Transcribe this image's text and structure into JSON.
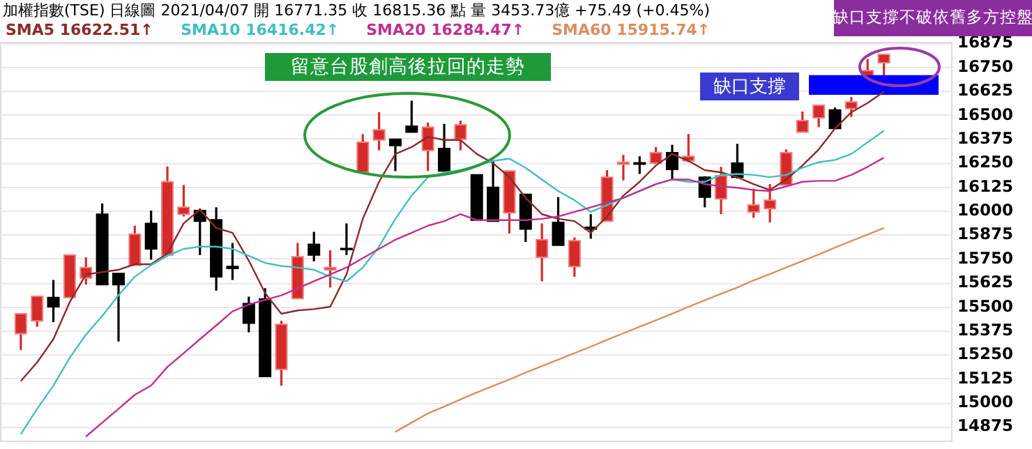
{
  "chart_data": {
    "type": "candlestick",
    "title": "加權指數(TSE)   日線圖   2021/04/07   開 16771.35   收 16815.36 點   量 3453.73億 +75.49 (+0.45%)",
    "categories": [
      null,
      null,
      null,
      null,
      null,
      null,
      null,
      null,
      null,
      null,
      null,
      null,
      null,
      null,
      null,
      null,
      null,
      null,
      null,
      null,
      null,
      null,
      null,
      null,
      null,
      null,
      null,
      null,
      null,
      null,
      null,
      null,
      null,
      null,
      null,
      null,
      null,
      null,
      null,
      null,
      null,
      null,
      null,
      null,
      null,
      null,
      null,
      null,
      null,
      null,
      null,
      null,
      null,
      null
    ],
    "ohlc": [
      [
        15358,
        15462,
        15273,
        15462
      ],
      [
        15425,
        15553,
        15394,
        15553
      ],
      [
        15546,
        15638,
        15418,
        15498
      ],
      [
        15546,
        15768,
        15546,
        15768
      ],
      [
        15648,
        15756,
        15614,
        15703
      ],
      [
        15981,
        16037,
        15614,
        15614
      ],
      [
        15672,
        15672,
        15317,
        15614
      ],
      [
        15715,
        15921,
        15715,
        15877
      ],
      [
        15933,
        16000,
        15744,
        15800
      ],
      [
        15768,
        16230,
        15768,
        16150
      ],
      [
        15981,
        16133,
        15969,
        16017
      ],
      [
        16000,
        16010,
        15768,
        15945
      ],
      [
        15952,
        16017,
        15582,
        15655
      ],
      [
        15708,
        15831,
        15638,
        15698
      ],
      [
        15515,
        15551,
        15365,
        15413
      ],
      [
        15539,
        15595,
        15135,
        15135
      ],
      [
        15172,
        15425,
        15087,
        15406
      ],
      [
        15541,
        15831,
        15541,
        15759
      ],
      [
        15824,
        15889,
        15735,
        15768
      ],
      [
        15691,
        15793,
        15599,
        15703
      ],
      [
        15802,
        15933,
        15768,
        15797
      ],
      [
        16199,
        16399,
        16194,
        16356
      ],
      [
        16368,
        16513,
        16314,
        16421
      ],
      [
        16372,
        16372,
        16206,
        16339
      ],
      [
        16440,
        16573,
        16409,
        16409
      ],
      [
        16314,
        16459,
        16206,
        16435
      ],
      [
        16324,
        16452,
        16206,
        16206
      ],
      [
        16372,
        16469,
        16314,
        16447
      ],
      [
        16186,
        16186,
        15950,
        15950
      ],
      [
        16121,
        16259,
        15945,
        15945
      ],
      [
        15988,
        16206,
        15880,
        16206
      ],
      [
        16085,
        16085,
        15836,
        15904
      ],
      [
        15756,
        15933,
        15631,
        15848
      ],
      [
        15938,
        16070,
        15819,
        15819
      ],
      [
        15708,
        15860,
        15655,
        15843
      ],
      [
        15913,
        15981,
        15853,
        15904
      ],
      [
        15945,
        16211,
        15945,
        16174
      ],
      [
        16242,
        16290,
        16157,
        16252
      ],
      [
        16249,
        16283,
        16191,
        16242
      ],
      [
        16247,
        16331,
        16242,
        16302
      ],
      [
        16302,
        16343,
        16157,
        16215
      ],
      [
        16259,
        16399,
        16252,
        16283
      ],
      [
        16174,
        16179,
        16017,
        16070
      ],
      [
        16061,
        16228,
        15981,
        16182
      ],
      [
        16247,
        16348,
        16167,
        16174
      ],
      [
        15993,
        16114,
        15962,
        16029
      ],
      [
        16010,
        16138,
        15938,
        16054
      ],
      [
        16133,
        16319,
        16133,
        16302
      ],
      [
        16409,
        16517,
        16409,
        16469
      ],
      [
        16484,
        16549,
        16435,
        16549
      ],
      [
        16525,
        16537,
        16423,
        16428
      ],
      [
        16532,
        16592,
        16488,
        16566
      ],
      [
        16701,
        16790,
        16701,
        16730
      ],
      [
        16771,
        16815,
        16706,
        16815
      ]
    ],
    "series": [
      {
        "name": "SMA5 16622.51↑",
        "type": "line",
        "color": "#8b2a2a",
        "values": [
          15111,
          15208,
          15329,
          15522,
          15667,
          15679,
          15691,
          15720,
          15720,
          15776,
          15933,
          16005,
          15909,
          15884,
          15739,
          15570,
          15462,
          15479,
          15486,
          15498,
          15667,
          15957,
          16150,
          16295,
          16331,
          16385,
          16368,
          16368,
          16295,
          16247,
          16174,
          16066,
          15981,
          15957,
          15945,
          15884,
          15969,
          16078,
          16150,
          16235,
          16295,
          16259,
          16211,
          16199,
          16174,
          16138,
          16107,
          16162,
          16235,
          16319,
          16428,
          16513,
          16561,
          16620
        ]
      },
      {
        "name": "SMA10 16416.42↑",
        "type": "line",
        "color": "#40c0c0",
        "values": [
          14833,
          14966,
          15087,
          15232,
          15353,
          15450,
          15558,
          15655,
          15715,
          15764,
          15800,
          15812,
          15812,
          15800,
          15764,
          15727,
          15711,
          15703,
          15691,
          15655,
          15631,
          15703,
          15812,
          15957,
          16078,
          16174,
          16198,
          16211,
          16235,
          16259,
          16271,
          16223,
          16162,
          16102,
          16054,
          15993,
          16029,
          16066,
          16102,
          16138,
          16162,
          16150,
          16150,
          16186,
          16191,
          16186,
          16174,
          16186,
          16223,
          16252,
          16264,
          16295,
          16356,
          16416
        ]
      },
      {
        "name": "SMA20 16284.47↑",
        "type": "line",
        "color": "#c03090",
        "values": [
          null,
          null,
          null,
          null,
          14821,
          14894,
          14966,
          15039,
          15087,
          15184,
          15256,
          15329,
          15401,
          15474,
          15510,
          15534,
          15558,
          15594,
          15631,
          15667,
          15703,
          15752,
          15800,
          15848,
          15884,
          15921,
          15945,
          15981,
          15950,
          15950,
          15950,
          15950,
          15957,
          15969,
          15993,
          16017,
          16041,
          16066,
          16102,
          16138,
          16162,
          16162,
          16138,
          16126,
          16119,
          16107,
          16102,
          16126,
          16150,
          16155,
          16155,
          16186,
          16228,
          16276
        ]
      },
      {
        "name": "SMA60 15915.74↑",
        "type": "line",
        "color": "#d89060",
        "values": [
          null,
          null,
          null,
          null,
          null,
          null,
          null,
          null,
          null,
          null,
          null,
          null,
          null,
          null,
          null,
          null,
          null,
          null,
          null,
          null,
          null,
          null,
          null,
          14846,
          14894,
          14942,
          14978,
          15015,
          15051,
          15085,
          15119,
          15155,
          15189,
          15222,
          15256,
          15290,
          15326,
          15360,
          15394,
          15428,
          15462,
          15498,
          15532,
          15566,
          15599,
          15636,
          15669,
          15703,
          15737,
          15771,
          15807,
          15841,
          15875,
          15909
        ]
      }
    ],
    "ylim": [
      14800,
      16880
    ],
    "yticks": [
      14875,
      15000,
      15125,
      15250,
      15375,
      15500,
      15625,
      15750,
      15875,
      16000,
      16125,
      16250,
      16375,
      16500,
      16625,
      16750,
      16875
    ],
    "grid": "y",
    "legend": "top",
    "marker": "none",
    "line_style": "solid",
    "bands": [
      {
        "axis": "y",
        "from": 16604,
        "to": 16706,
        "label": "缺口支撐",
        "color": "#0000ff"
      }
    ],
    "annotations": [
      "留意台股創高後拉回的走勢",
      "缺口支撐不破依舊多方控盤"
    ]
  }
}
